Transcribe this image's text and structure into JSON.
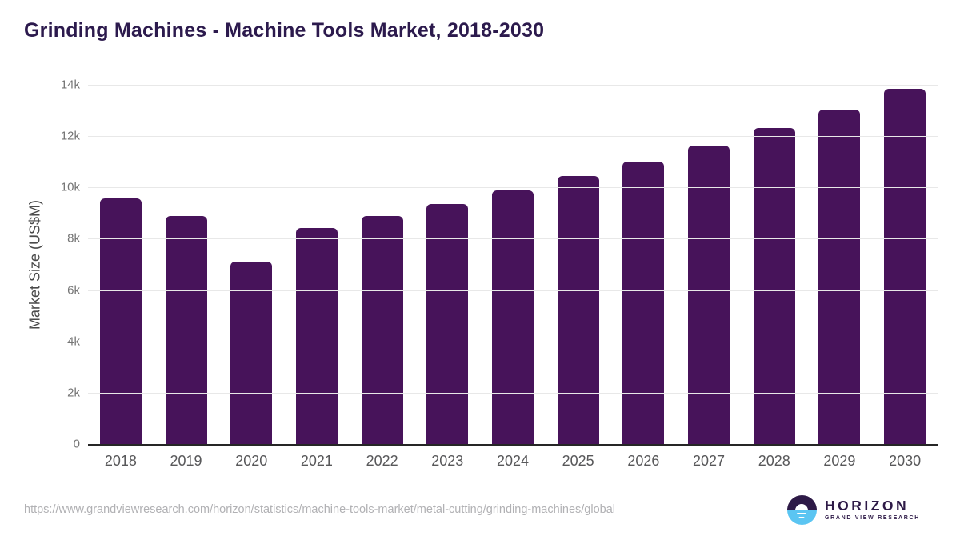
{
  "title": "Grinding Machines - Machine Tools Market, 2018-2030",
  "chart_data": {
    "type": "bar",
    "title": "Grinding Machines - Machine Tools Market, 2018-2030",
    "categories": [
      "2018",
      "2019",
      "2020",
      "2021",
      "2022",
      "2023",
      "2024",
      "2025",
      "2026",
      "2027",
      "2028",
      "2029",
      "2030"
    ],
    "values": [
      9560,
      8900,
      7110,
      8430,
      8880,
      9370,
      9880,
      10440,
      11000,
      11640,
      12320,
      13030,
      13840
    ],
    "xlabel": "",
    "ylabel": "Market Size (US$M)",
    "ylim": [
      0,
      14000
    ],
    "yticks": [
      0,
      2000,
      4000,
      6000,
      8000,
      10000,
      12000,
      14000
    ],
    "ytick_labels": [
      "0",
      "2k",
      "4k",
      "6k",
      "8k",
      "10k",
      "12k",
      "14k"
    ],
    "grid": true,
    "legend": "none",
    "bar_color": "#47135a"
  },
  "colors": {
    "title_text": "#2c1a4d",
    "bar": "#47135a",
    "gridline": "#e8e8e8",
    "axis_line": "#262626",
    "tick_text": "#757575",
    "x_label_text": "#58585a",
    "url_text": "#b1b1b4",
    "logo_dark": "#2e1a47",
    "logo_blue": "#5bc5f2"
  },
  "footer": {
    "source_url": "https://www.grandviewresearch.com/horizon/statistics/machine-tools-market/metal-cutting/grinding-machines/global",
    "logo": {
      "name": "HORIZON",
      "subtitle": "GRAND VIEW RESEARCH",
      "icon": "horizon-sun-circle-icon"
    }
  }
}
